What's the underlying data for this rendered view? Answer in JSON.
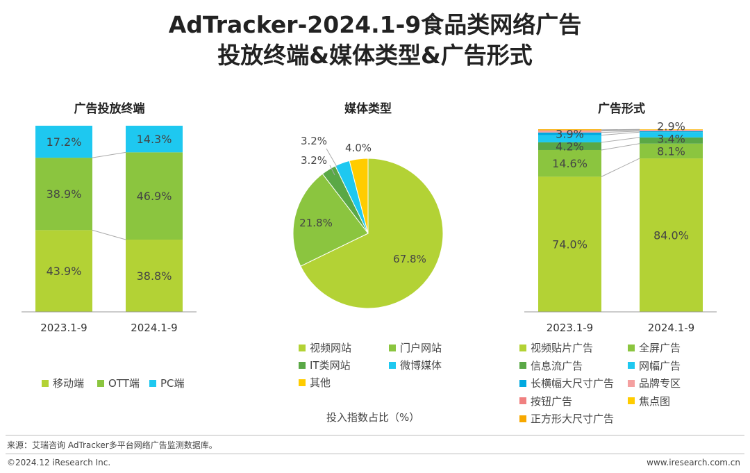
{
  "title": {
    "line1": "AdTracker-2024.1-9食品类网络广告",
    "line2": "投放终端&媒体类型&广告形式"
  },
  "footer": {
    "source": "来源：艾瑞咨询 AdTracker多平台网络广告监测数据库。",
    "copyright": "©2024.12 iResearch Inc.",
    "website": "www.iresearch.com.cn"
  },
  "chart_data": [
    {
      "type": "bar",
      "stacked": true,
      "title": "广告投放终端",
      "categories": [
        "2023.1-9",
        "2024.1-9"
      ],
      "series": [
        {
          "name": "移动端",
          "values": [
            43.9,
            38.8
          ],
          "color": "#b3d235"
        },
        {
          "name": "OTT端",
          "values": [
            38.9,
            46.9
          ],
          "color": "#8bc53f"
        },
        {
          "name": "PC端",
          "values": [
            17.2,
            14.3
          ],
          "color": "#1ec8f0"
        }
      ],
      "ylim": [
        0,
        100
      ],
      "legend": "bottom"
    },
    {
      "type": "pie",
      "title": "媒体类型",
      "xlabel": "投入指数占比（%）",
      "slices": [
        {
          "name": "视频网站",
          "value": 67.8,
          "color": "#b3d235"
        },
        {
          "name": "门户网站",
          "value": 21.8,
          "color": "#8bc53f"
        },
        {
          "name": "IT类网站",
          "value": 3.2,
          "color": "#5aa846"
        },
        {
          "name": "微博媒体",
          "value": 3.2,
          "color": "#1ec8f0"
        },
        {
          "name": "其他",
          "value": 4.0,
          "color": "#ffcc00"
        }
      ],
      "legend": "bottom"
    },
    {
      "type": "bar",
      "stacked": true,
      "title": "广告形式",
      "categories": [
        "2023.1-9",
        "2024.1-9"
      ],
      "series": [
        {
          "name": "视频贴片广告",
          "values": [
            74.0,
            84.0
          ],
          "color": "#b3d235",
          "labels": [
            "74.0%",
            "84.0%"
          ]
        },
        {
          "name": "全屏广告",
          "values": [
            14.6,
            8.1
          ],
          "color": "#8bc53f",
          "labels": [
            "14.6%",
            "8.1%"
          ]
        },
        {
          "name": "信息流广告",
          "values": [
            4.2,
            3.4
          ],
          "color": "#5aa846",
          "labels": [
            "4.2%",
            "3.4%"
          ]
        },
        {
          "name": "网幅广告",
          "values": [
            3.9,
            2.9
          ],
          "color": "#1ec8f0",
          "labels": [
            "3.9%",
            "2.9%"
          ]
        },
        {
          "name": "长横幅大尺寸广告",
          "values": [
            1.5,
            0.5
          ],
          "color": "#00a9e0"
        },
        {
          "name": "品牌专区",
          "values": [
            0.8,
            0.6
          ],
          "color": "#f4a0a0"
        },
        {
          "name": "按钮广告",
          "values": [
            0.4,
            0.2
          ],
          "color": "#f08080"
        },
        {
          "name": "焦点图",
          "values": [
            0.3,
            0.2
          ],
          "color": "#ffcc00"
        },
        {
          "name": "正方形大尺寸广告",
          "values": [
            0.3,
            0.1
          ],
          "color": "#f7a800"
        }
      ],
      "ylim": [
        0,
        100
      ],
      "legend": "bottom"
    }
  ]
}
